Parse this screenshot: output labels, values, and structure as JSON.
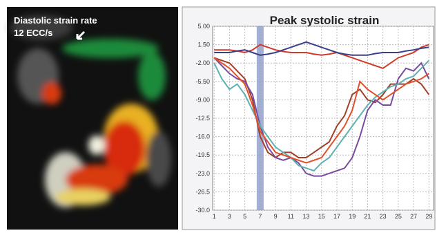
{
  "image_panel": {
    "title": "Diastolic strain rate",
    "label": "12 ECC/s"
  },
  "chart_data": {
    "type": "line",
    "title": "Peak systolic strain",
    "x": [
      1,
      2,
      3,
      4,
      5,
      6,
      7,
      8,
      9,
      10,
      11,
      12,
      13,
      14,
      15,
      16,
      17,
      18,
      19,
      20,
      21,
      22,
      23,
      24,
      25,
      26,
      27,
      28,
      29
    ],
    "xlim": [
      0.8,
      29.6
    ],
    "xticks": [
      1,
      3,
      5,
      7,
      9,
      11,
      13,
      15,
      17,
      19,
      21,
      23,
      25,
      27,
      29
    ],
    "ylim": [
      -30,
      5
    ],
    "yticks": [
      {
        "value": 5,
        "label": "5.00"
      },
      {
        "value": 1.5,
        "label": "1.50"
      },
      {
        "value": -2,
        "label": "-2.00"
      },
      {
        "value": -5.5,
        "label": "-5.50"
      },
      {
        "value": -9,
        "label": "-9.00"
      },
      {
        "value": -12.5,
        "label": "-12.5"
      },
      {
        "value": -16,
        "label": "-16.0"
      },
      {
        "value": -19.5,
        "label": "-19.5"
      },
      {
        "value": -23,
        "label": "-23.0"
      },
      {
        "value": -26.5,
        "label": "-26.5"
      },
      {
        "value": -30,
        "label": "-30.0"
      }
    ],
    "grid": true,
    "highlight_x": 7,
    "highlight_color": "#8c9cc8",
    "series": [
      {
        "color": "#d03a2a",
        "values": [
          0.5,
          0.5,
          0.5,
          0.3,
          0,
          0.5,
          1.5,
          1,
          0.5,
          0.2,
          0,
          0,
          0,
          -0.3,
          -0.5,
          -0.3,
          0,
          -0.5,
          -1,
          -1.5,
          -2,
          -2.5,
          -3,
          -2,
          -1,
          -0.5,
          0,
          1,
          1.5
        ]
      },
      {
        "color": "#3a3f8a",
        "values": [
          0,
          0,
          0,
          0.3,
          0.5,
          0,
          -0.5,
          -0.3,
          0,
          0.5,
          1,
          1.5,
          2,
          1.5,
          1,
          0.5,
          0,
          -0.3,
          -0.5,
          -0.5,
          -0.5,
          -0.2,
          0,
          0,
          0,
          0.3,
          0.5,
          0.8,
          1
        ]
      },
      {
        "color": "#a0402a",
        "values": [
          -1,
          -1.5,
          -2,
          -3.5,
          -5,
          -9,
          -16,
          -19,
          -20,
          -19,
          -19,
          -20,
          -20,
          -19,
          -18,
          -17,
          -14,
          -12,
          -8,
          -7,
          -9,
          -9.5,
          -8,
          -6,
          -6,
          -6,
          -5,
          -6,
          -8
        ]
      },
      {
        "color": "#7a4aa0",
        "values": [
          -1,
          -2.5,
          -4,
          -5,
          -5.5,
          -8,
          -14,
          -18,
          -20,
          -20.5,
          -20,
          -21,
          -23,
          -23.5,
          -23.5,
          -23,
          -22.5,
          -22,
          -20,
          -16,
          -11,
          -9,
          -10,
          -10,
          -5,
          -3,
          -3.5,
          -2,
          -5
        ]
      },
      {
        "color": "#5fb0b0",
        "values": [
          -2,
          -5,
          -7,
          -6,
          -8,
          -11,
          -14,
          -16,
          -18,
          -19,
          -20,
          -21.5,
          -22,
          -22.5,
          -21,
          -20,
          -18,
          -16,
          -14,
          -12,
          -10,
          -8.5,
          -7.5,
          -6.5,
          -6,
          -5,
          -4.5,
          -3,
          -1.5
        ]
      },
      {
        "color": "#e0502a",
        "values": [
          -1,
          -2,
          -3,
          -4.5,
          -6,
          -10,
          -15,
          -17,
          -19,
          -19.5,
          -20,
          -20.5,
          -21,
          -20.5,
          -20,
          -18,
          -16,
          -14,
          -11,
          -5.5,
          -7,
          -8,
          -9,
          -8,
          -7,
          -6,
          -5.5,
          -5,
          -4
        ]
      }
    ]
  }
}
